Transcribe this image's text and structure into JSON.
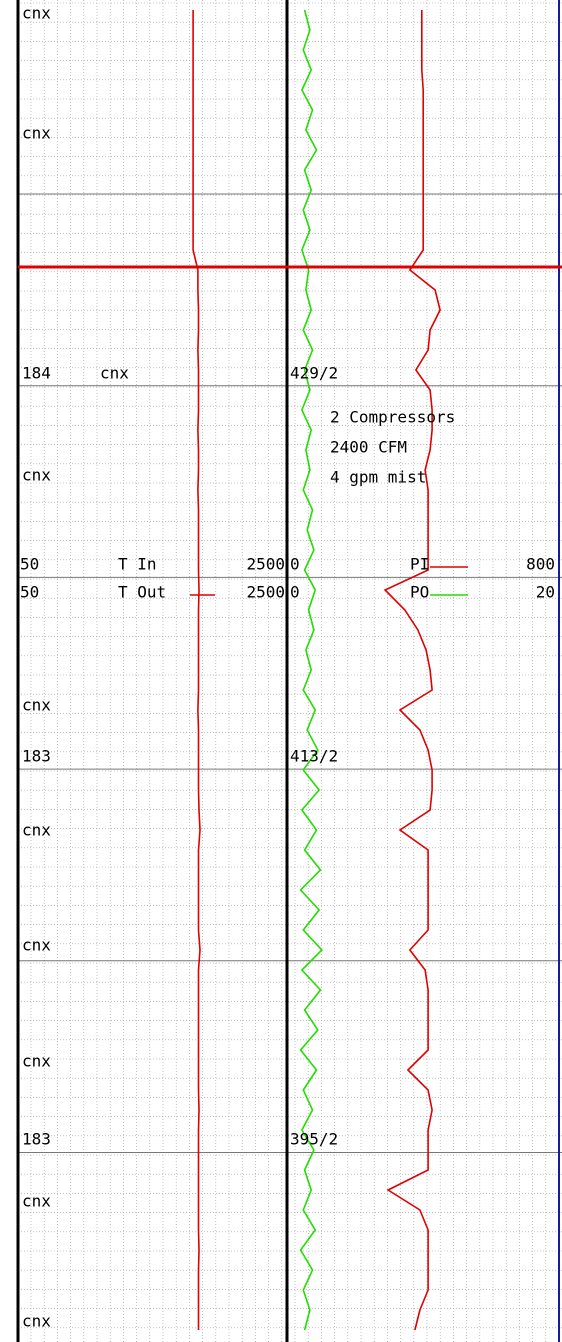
{
  "chart_data": {
    "type": "mud-log",
    "tracks": [
      {
        "series": [
          {
            "name": "T In",
            "xlim": [
              50,
              2500
            ]
          },
          {
            "name": "T Out",
            "xlim": [
              50,
              2500
            ],
            "color": "#e00000",
            "values": [
              1650,
              1650,
              1650,
              1650,
              1650,
              1650,
              1650,
              1650,
              1650,
              1650,
              1650,
              1650,
              1650,
              1695,
              1695,
              1700,
              1700,
              1695,
              1700,
              1700,
              1700,
              1695,
              1700,
              1700,
              1695,
              1700,
              1700,
              1700,
              1700,
              1705,
              1700,
              1700,
              1700,
              1700,
              1700,
              1695,
              1700,
              1700,
              1700,
              1700,
              1705,
              1714,
              1700,
              1700,
              1700,
              1700,
              1700,
              1714,
              1700,
              1700,
              1700,
              1700,
              1700,
              1700,
              1700,
              1705,
              1700,
              1700,
              1700,
              1700,
              1700,
              1700,
              1705,
              1700,
              1700,
              1700,
              1700
            ]
          }
        ]
      },
      {
        "series": [
          {
            "name": "PI",
            "xlim": [
              0,
              800
            ],
            "color": "#e00000",
            "values": [
              398,
              398,
              398,
              398,
              402,
              402,
              402,
              402,
              402,
              402,
              402,
              402,
              402,
              362,
              438,
              453,
              423,
              417,
              380,
              423,
              429,
              429,
              423,
              408,
              417,
              417,
              417,
              417,
              417,
              287,
              347,
              386,
              411,
              423,
              429,
              332,
              392,
              417,
              429,
              429,
              423,
              332,
              417,
              417,
              417,
              417,
              417,
              362,
              408,
              417,
              417,
              417,
              417,
              356,
              417,
              429,
              417,
              417,
              417,
              296,
              392,
              417,
              417,
              417,
              417,
              392,
              377
            ]
          },
          {
            "name": "PO",
            "xlim": [
              0,
              20
            ],
            "color": "#22dd00",
            "values": [
              1.1,
              1.5,
              1.0,
              1.6,
              0.9,
              1.7,
              1.2,
              2.0,
              1.1,
              1.6,
              1.0,
              1.5,
              0.9,
              1.4,
              1.2,
              1.6,
              1.0,
              1.7,
              1.1,
              1.5,
              0.9,
              1.6,
              1.2,
              1.5,
              1.0,
              1.7,
              1.3,
              1.8,
              1.1,
              1.9,
              1.4,
              1.8,
              1.2,
              1.6,
              1.0,
              1.9,
              1.3,
              2.1,
              1.0,
              2.2,
              0.9,
              2.0,
              1.1,
              2.3,
              0.8,
              2.2,
              1.0,
              2.4,
              0.9,
              2.3,
              1.1,
              2.1,
              0.8,
              2.0,
              1.0,
              1.7,
              0.9,
              1.8,
              1.1,
              1.6,
              1.0,
              1.9,
              0.8,
              1.7,
              1.0,
              1.5,
              1.1
            ]
          }
        ]
      }
    ],
    "notes": [
      "cnx",
      "cnx",
      "184",
      "cnx",
      "429/2",
      "2 Compressors",
      "2400 CFM",
      "4 gpm mist",
      "cnx",
      "cnx",
      "183",
      "413/2",
      "cnx",
      "cnx",
      "cnx",
      "183",
      "395/2",
      "cnx",
      "cnx"
    ]
  }
}
